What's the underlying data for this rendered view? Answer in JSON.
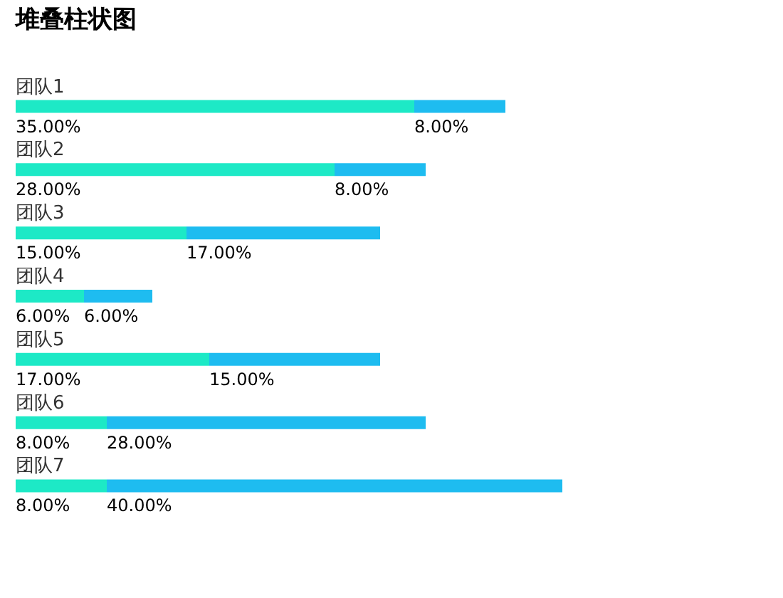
{
  "chart_data": {
    "type": "bar",
    "title": "堆叠柱状图",
    "orientation": "horizontal",
    "stacked": true,
    "legend": false,
    "categories": [
      "团队1",
      "团队2",
      "团队3",
      "团队4",
      "团队5",
      "团队6",
      "团队7"
    ],
    "series": [
      {
        "color": "#1de9c6",
        "values": [
          35,
          28,
          15,
          6,
          17,
          8,
          8
        ],
        "value_labels": [
          "35.00%",
          "28.00%",
          "15.00%",
          "6.00%",
          "17.00%",
          "8.00%",
          "8.00%"
        ]
      },
      {
        "color": "#1ebcf0",
        "values": [
          8,
          8,
          17,
          6,
          15,
          28,
          40
        ],
        "value_labels": [
          "8.00%",
          "8.00%",
          "17.00%",
          "6.00%",
          "15.00%",
          "28.00%",
          "40.00%"
        ]
      }
    ]
  }
}
